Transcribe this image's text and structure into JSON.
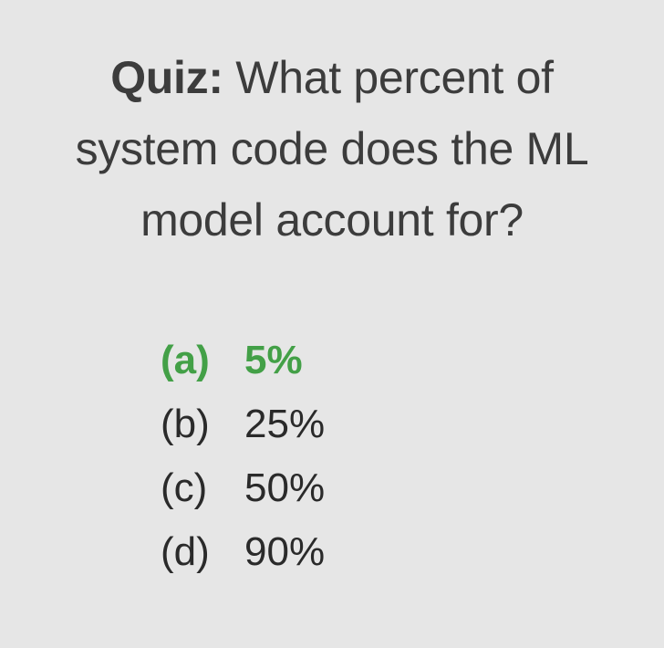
{
  "question": {
    "label": "Quiz:",
    "line1": "What percent of",
    "line2": "system code does the ML",
    "line3": "model account for?"
  },
  "options": [
    {
      "letter": "(a)",
      "text": "5%",
      "correct": true
    },
    {
      "letter": "(b)",
      "text": "25%",
      "correct": false
    },
    {
      "letter": "(c)",
      "text": "50%",
      "correct": false
    },
    {
      "letter": "(d)",
      "text": "90%",
      "correct": false
    }
  ],
  "colors": {
    "background": "#e6e6e6",
    "text": "#3c3c3c",
    "correct": "#43a047"
  }
}
